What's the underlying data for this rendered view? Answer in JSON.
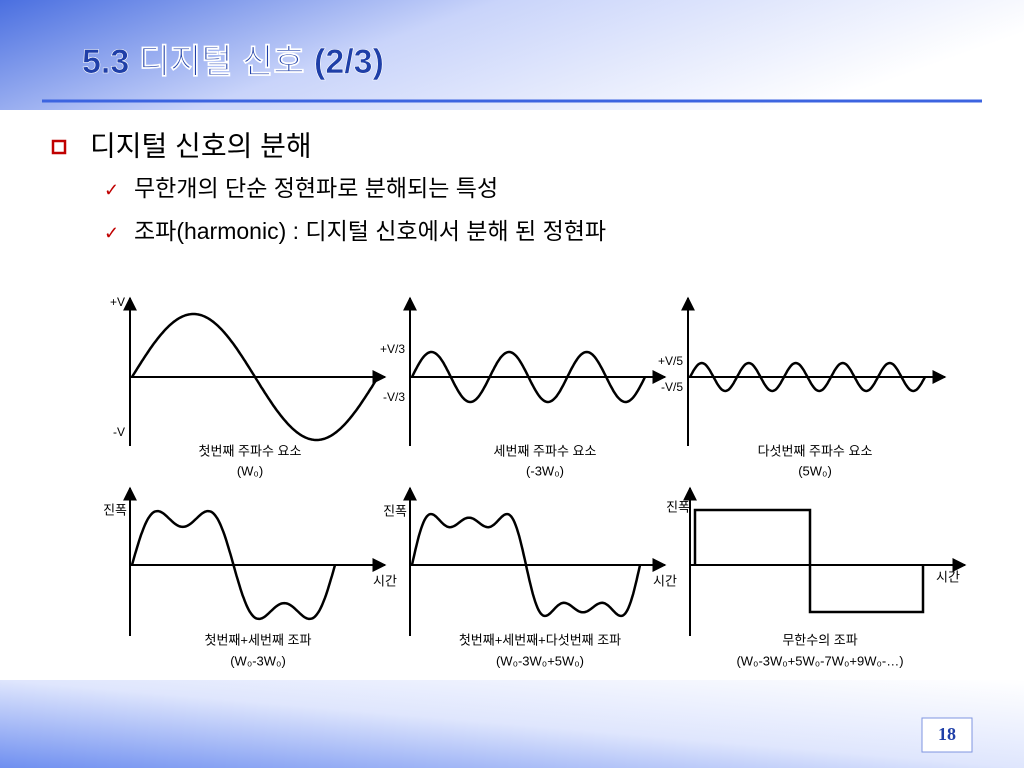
{
  "header": {
    "title": "5.3 디지털 신호 (2/3)"
  },
  "bullets": [
    {
      "text": "디지털 신호의 분해",
      "sub": [
        "무한개의 단순 정현파로 분해되는 특성",
        "조파(harmonic) : 디지털 신호에서 분해 된 정현파"
      ]
    }
  ],
  "figure": {
    "top_panels": [
      {
        "upper_label": "+V",
        "lower_label": "-V",
        "caption": [
          "첫번째 주파수 요소",
          "(W₀)"
        ]
      },
      {
        "upper_label": "+V/3",
        "lower_label": "-V/3",
        "caption": [
          "세번째 주파수 요소",
          "(-3W₀)"
        ]
      },
      {
        "upper_label": "+V/5",
        "lower_label": "-V/5",
        "caption": [
          "다섯번째 주파수 요소",
          "(5W₀)"
        ]
      }
    ],
    "bottom_panels": [
      {
        "y_label": "진폭",
        "x_label": "시간",
        "caption": [
          "첫번째+세번째 조파",
          "(W₀-3W₀)"
        ]
      },
      {
        "y_label": "진폭",
        "x_label": "시간",
        "caption": [
          "첫번째+세번째+다섯번째 조파",
          "(W₀-3W₀+5W₀)"
        ]
      },
      {
        "y_label": "진폭",
        "x_label": "시간",
        "caption": [
          "무한수의 조파",
          "(W₀-3W₀+5W₀-7W₀+9W₀-…)"
        ]
      }
    ]
  },
  "page_number": "18"
}
